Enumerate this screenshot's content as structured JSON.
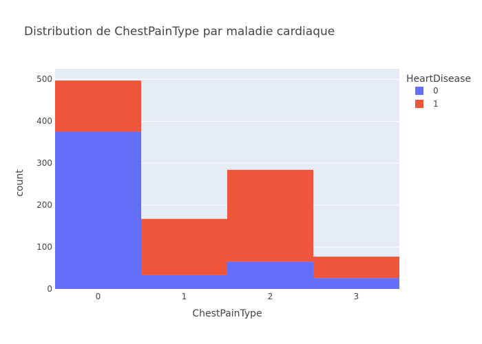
{
  "chart_data": {
    "type": "bar",
    "barmode": "stack",
    "title": "Distribution de ChestPainType par maladie cardiaque",
    "xlabel": "ChestPainType",
    "ylabel": "count",
    "categories": [
      "0",
      "1",
      "2",
      "3"
    ],
    "series": [
      {
        "name": "0",
        "color": "#636efa",
        "values": [
          375,
          33,
          65,
          26
        ]
      },
      {
        "name": "1",
        "color": "#ef553b",
        "values": [
          122,
          134,
          219,
          51
        ]
      }
    ],
    "ylim": [
      0,
      525
    ],
    "yticks": [
      0,
      100,
      200,
      300,
      400,
      500
    ],
    "grid": true,
    "legend": {
      "title": "HeartDisease",
      "position": "top-right"
    },
    "plot_background": "#e5ecf6"
  }
}
